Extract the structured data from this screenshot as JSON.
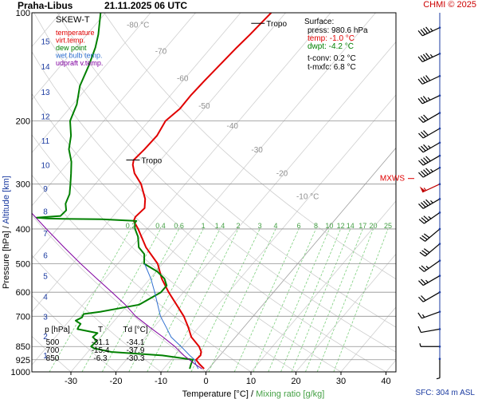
{
  "header": {
    "station": "Praha-Libus",
    "datetime": "21.11.2025 06 UTC",
    "credit": "CHMI © 2025",
    "sfc_label": "SFC: 304 m ASL"
  },
  "chart_data": {
    "type": "line",
    "subtype": "skew-t",
    "title": "SKEW-T",
    "xlabel": "Temperature [°C]",
    "xlabel_sep": "/",
    "xlabel2": "Mixing ratio [g/kg]",
    "ylabel": "Pressure [hPa]",
    "ylabel_sep": "/",
    "ylabel2": "Altitude [km]",
    "x_ticks": [
      -30,
      -20,
      -10,
      0,
      10,
      20,
      30,
      40
    ],
    "xlim": [
      -37,
      42
    ],
    "p_range": [
      100,
      1000
    ],
    "pressure_levels": [
      100,
      200,
      300,
      400,
      500,
      600,
      700,
      850,
      925,
      1000
    ],
    "pressure_tick_labels": [
      "100",
      "200",
      "300",
      "400",
      "500",
      "600",
      "700",
      "850",
      "925",
      "1000"
    ],
    "altitude_ticks": [
      {
        "label": "1",
        "p": 898
      },
      {
        "label": "2",
        "p": 795
      },
      {
        "label": "3",
        "p": 701
      },
      {
        "label": "4",
        "p": 616
      },
      {
        "label": "5",
        "p": 540
      },
      {
        "label": "6",
        "p": 472
      },
      {
        "label": "7",
        "p": 411
      },
      {
        "label": "8",
        "p": 357
      },
      {
        "label": "9",
        "p": 308
      },
      {
        "label": "10",
        "p": 265
      },
      {
        "label": "11",
        "p": 227
      },
      {
        "label": "12",
        "p": 194
      },
      {
        "label": "13",
        "p": 166
      },
      {
        "label": "14",
        "p": 141
      },
      {
        "label": "15",
        "p": 120
      }
    ],
    "isotherm_labels": [
      {
        "t": -80,
        "text": "-80 °C",
        "p": 110
      },
      {
        "t": -70,
        "text": "-70",
        "p": 130
      },
      {
        "t": -60,
        "text": "-60",
        "p": 155
      },
      {
        "t": -50,
        "text": "-50",
        "p": 185
      },
      {
        "t": -40,
        "text": "-40",
        "p": 210
      },
      {
        "t": -30,
        "text": "-30",
        "p": 245
      },
      {
        "t": -20,
        "text": "-20",
        "p": 285
      },
      {
        "t": -10,
        "text": "-10 °C",
        "p": 330
      }
    ],
    "mixing_ratio_labels": [
      "0.2",
      "0.4",
      "0.6",
      "1",
      "1.4",
      "2",
      "3",
      "4",
      "6",
      "8",
      "10",
      "12",
      "14",
      "17",
      "20",
      "25"
    ],
    "mixing_ratio_values": [
      0.2,
      0.4,
      0.6,
      1,
      1.4,
      2,
      3,
      4,
      6,
      8,
      10,
      12,
      14,
      17,
      20,
      25
    ],
    "legend": [
      {
        "label": "temperature",
        "color": "#e00000"
      },
      {
        "label": "virt.temp.",
        "color": "#e00000"
      },
      {
        "label": "dew point",
        "color": "#008000"
      },
      {
        "label": "wet bulb temp.",
        "color": "#3070d0"
      },
      {
        "label": "udpraft v.temp.",
        "color": "#8000a0"
      }
    ],
    "surface_box": {
      "title": "Surface:",
      "lines": [
        {
          "text": "press: 980.6 hPa",
          "color": "#000000"
        },
        {
          "text": "temp: -1.0 °C",
          "color": "#e00000"
        },
        {
          "text": "dwpt: -4.2 °C",
          "color": "#008000"
        },
        {
          "text": "t-conv: 0.2 °C",
          "color": "#000000"
        },
        {
          "text": "t-mxfc: 6.8 °C",
          "color": "#000000"
        }
      ]
    },
    "table": {
      "headers": [
        "p [hPa]",
        "T",
        "Td [°C]"
      ],
      "rows": [
        [
          "500",
          "-31.1",
          "-34.1"
        ],
        [
          "700",
          "-15.4",
          "-37.9"
        ],
        [
          "850",
          "-6.3",
          "-30.3"
        ]
      ]
    },
    "tropopause": [
      {
        "label": "Tropo",
        "p": 107,
        "t": -53
      },
      {
        "label": "Tropo",
        "p": 257,
        "t": -55
      }
    ],
    "mxws_label": "MXWS",
    "mxws_p": 300,
    "series": [
      {
        "name": "temperature",
        "color": "#e00000",
        "points": [
          [
            980,
            -1.0
          ],
          [
            950,
            -3.0
          ],
          [
            925,
            -4.5
          ],
          [
            900,
            -4.3
          ],
          [
            880,
            -4.8
          ],
          [
            850,
            -6.3
          ],
          [
            800,
            -9.8
          ],
          [
            750,
            -12.4
          ],
          [
            700,
            -15.4
          ],
          [
            650,
            -19.2
          ],
          [
            600,
            -23.3
          ],
          [
            550,
            -27.4
          ],
          [
            500,
            -31.1
          ],
          [
            450,
            -36.8
          ],
          [
            400,
            -42.0
          ],
          [
            380,
            -44.5
          ],
          [
            370,
            -44.9
          ],
          [
            350,
            -44.5
          ],
          [
            330,
            -46.1
          ],
          [
            300,
            -49.8
          ],
          [
            280,
            -53.3
          ],
          [
            265,
            -55.3
          ],
          [
            257,
            -56.0
          ],
          [
            240,
            -55.6
          ],
          [
            220,
            -55.4
          ],
          [
            200,
            -56.3
          ],
          [
            185,
            -55.4
          ],
          [
            170,
            -55.5
          ],
          [
            155,
            -55.2
          ],
          [
            140,
            -54.8
          ],
          [
            125,
            -54.3
          ],
          [
            115,
            -53.8
          ],
          [
            107,
            -53.5
          ],
          [
            100,
            -53.2
          ]
        ]
      },
      {
        "name": "dew point",
        "color": "#008000",
        "points": [
          [
            980,
            -4.2
          ],
          [
            950,
            -4.8
          ],
          [
            925,
            -5.2
          ],
          [
            900,
            -12.8
          ],
          [
            880,
            -24.8
          ],
          [
            860,
            -29.3
          ],
          [
            850,
            -30.3
          ],
          [
            820,
            -30.1
          ],
          [
            800,
            -31.7
          ],
          [
            780,
            -31.4
          ],
          [
            760,
            -36.6
          ],
          [
            750,
            -36.8
          ],
          [
            735,
            -36.9
          ],
          [
            720,
            -38.6
          ],
          [
            705,
            -37.8
          ],
          [
            700,
            -37.9
          ],
          [
            690,
            -38.1
          ],
          [
            680,
            -34.7
          ],
          [
            650,
            -27.5
          ],
          [
            600,
            -25.0
          ],
          [
            575,
            -25.0
          ],
          [
            550,
            -26.8
          ],
          [
            525,
            -29.8
          ],
          [
            500,
            -34.1
          ],
          [
            470,
            -35.9
          ],
          [
            450,
            -38.4
          ],
          [
            420,
            -40.6
          ],
          [
            400,
            -42.7
          ],
          [
            385,
            -43.9
          ],
          [
            380,
            -43.9
          ],
          [
            376,
            -51.9
          ],
          [
            375,
            -60.5
          ],
          [
            374,
            -64.2
          ],
          [
            372,
            -66.7
          ],
          [
            368,
            -61.7
          ],
          [
            355,
            -61.5
          ],
          [
            340,
            -62.9
          ],
          [
            320,
            -63.8
          ],
          [
            300,
            -65.5
          ],
          [
            280,
            -67.4
          ],
          [
            260,
            -69.5
          ],
          [
            240,
            -72.4
          ],
          [
            220,
            -74.5
          ],
          [
            200,
            -77.5
          ],
          [
            180,
            -79.1
          ],
          [
            160,
            -81.9
          ],
          [
            140,
            -83.8
          ],
          [
            125,
            -85.7
          ],
          [
            115,
            -87.5
          ],
          [
            100,
            -91.1
          ]
        ]
      },
      {
        "name": "wet bulb temp.",
        "color": "#3070d0",
        "points": [
          [
            980,
            -2.3
          ],
          [
            950,
            -3.8
          ],
          [
            925,
            -4.8
          ],
          [
            900,
            -6.7
          ],
          [
            850,
            -10.3
          ],
          [
            800,
            -14.3
          ],
          [
            750,
            -17.3
          ],
          [
            700,
            -20.6
          ],
          [
            650,
            -23.4
          ],
          [
            600,
            -26.4
          ],
          [
            550,
            -29.8
          ],
          [
            500,
            -34.0
          ]
        ]
      },
      {
        "name": "udpraft v.temp.",
        "color": "#8000a0",
        "points": [
          [
            980,
            -1.5
          ],
          [
            950,
            -4.0
          ],
          [
            900,
            -8.0
          ],
          [
            850,
            -11.7
          ],
          [
            800,
            -16.1
          ],
          [
            750,
            -21.0
          ],
          [
            700,
            -26.1
          ],
          [
            650,
            -30.6
          ],
          [
            600,
            -35.9
          ],
          [
            550,
            -41.8
          ],
          [
            500,
            -48.2
          ],
          [
            450,
            -55.0
          ],
          [
            400,
            -62.4
          ],
          [
            350,
            -70.6
          ],
          [
            300,
            -79.9
          ],
          [
            250,
            -90.3
          ],
          [
            200,
            -103.1
          ],
          [
            160,
            -114.4
          ]
        ]
      }
    ],
    "wind_barbs": [
      {
        "p": 110,
        "dir": 245,
        "spd": 45
      },
      {
        "p": 130,
        "dir": 245,
        "spd": 45
      },
      {
        "p": 150,
        "dir": 245,
        "spd": 40
      },
      {
        "p": 170,
        "dir": 245,
        "spd": 35
      },
      {
        "p": 190,
        "dir": 240,
        "spd": 30
      },
      {
        "p": 210,
        "dir": 240,
        "spd": 30
      },
      {
        "p": 230,
        "dir": 240,
        "spd": 35
      },
      {
        "p": 250,
        "dir": 240,
        "spd": 40
      },
      {
        "p": 270,
        "dir": 240,
        "spd": 45
      },
      {
        "p": 300,
        "dir": 245,
        "spd": 55
      },
      {
        "p": 330,
        "dir": 240,
        "spd": 45
      },
      {
        "p": 360,
        "dir": 235,
        "spd": 35
      },
      {
        "p": 400,
        "dir": 230,
        "spd": 30
      },
      {
        "p": 440,
        "dir": 230,
        "spd": 30
      },
      {
        "p": 490,
        "dir": 235,
        "spd": 25
      },
      {
        "p": 540,
        "dir": 240,
        "spd": 25
      },
      {
        "p": 600,
        "dir": 240,
        "spd": 20
      },
      {
        "p": 680,
        "dir": 250,
        "spd": 15
      },
      {
        "p": 760,
        "dir": 260,
        "spd": 10
      },
      {
        "p": 850,
        "dir": 270,
        "spd": 5
      },
      {
        "p": 920,
        "dir": 180,
        "spd": 5
      }
    ]
  }
}
